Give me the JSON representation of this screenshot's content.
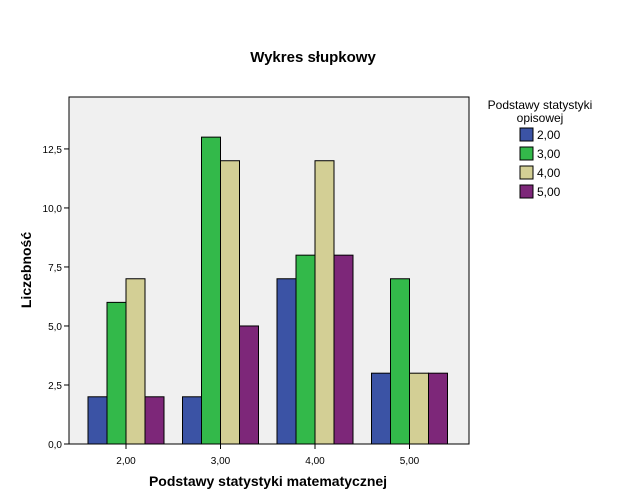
{
  "chart_data": {
    "type": "bar",
    "title": "Wykres słupkowy",
    "xlabel": "Podstawy statystyki matematycznej",
    "ylabel": "Liczebność",
    "categories": [
      "2,00",
      "3,00",
      "4,00",
      "5,00"
    ],
    "series": [
      {
        "name": "2,00",
        "color": "#3b53a5",
        "values": [
          2,
          2,
          7,
          3
        ]
      },
      {
        "name": "3,00",
        "color": "#33b94a",
        "values": [
          6,
          13,
          8,
          7
        ]
      },
      {
        "name": "4,00",
        "color": "#d3cf95",
        "values": [
          7,
          12,
          12,
          3
        ]
      },
      {
        "name": "5,00",
        "color": "#7d2779",
        "values": [
          2,
          5,
          8,
          3
        ]
      }
    ],
    "ylim": [
      0,
      14.7
    ],
    "yticks": [
      0,
      2.5,
      5,
      7.5,
      10,
      12.5
    ],
    "ytick_labels": [
      "0,0",
      "2,5",
      "5,0",
      "7,5",
      "10,0",
      "12,5"
    ],
    "legend": {
      "title_lines": [
        "Podstawy statystyki",
        "opisowej"
      ],
      "position": "right"
    },
    "plot_background": "#f0f0f0",
    "grid": false
  }
}
